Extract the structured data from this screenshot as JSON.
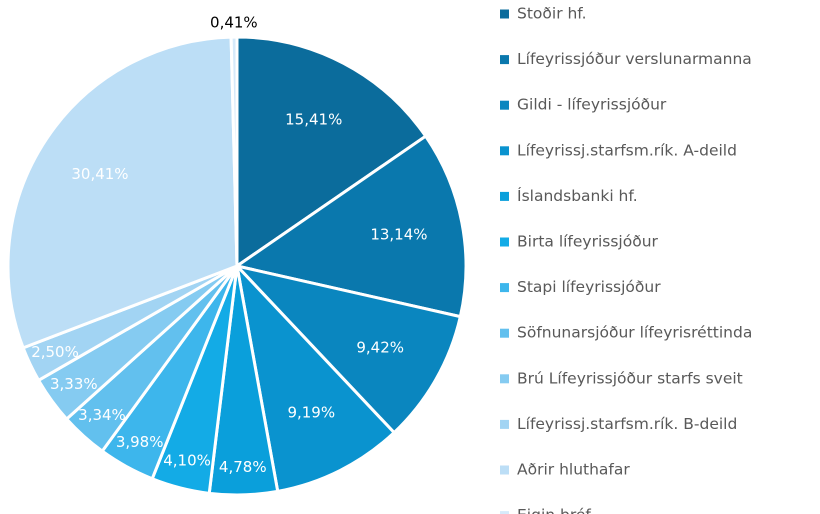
{
  "chart_data": {
    "type": "pie",
    "categories": [
      "Stoðir hf.",
      "Lífeyrissjóður verslunarmanna",
      "Gildi - lífeyrissjóður",
      "Lífeyrissj.starfsm.rík. A-deild",
      "Íslandsbanki hf.",
      "Birta lífeyrissjóður",
      "Stapi lífeyrissjóður",
      "Söfnunarsjóður lífeyrisréttinda",
      "Brú Lífeyrissjóður starfs sveit",
      "Lífeyrissj.starfsm.rík. B-deild",
      "Aðrir hluthafar",
      "Eigin bréf"
    ],
    "values": [
      15.41,
      13.14,
      9.42,
      9.19,
      4.78,
      4.1,
      3.98,
      3.34,
      3.33,
      2.5,
      30.41,
      0.41
    ],
    "value_labels": [
      "15,41%",
      "13,14%",
      "9,42%",
      "9,19%",
      "4,78%",
      "4,10%",
      "3,98%",
      "3,34%",
      "3,33%",
      "2,50%",
      "30,41%",
      "0,41%"
    ],
    "colors": [
      "#0b6c9c",
      "#0a78ad",
      "#0a86bf",
      "#0a93cf",
      "#0a9fdb",
      "#13abe6",
      "#3db6ec",
      "#62c0ee",
      "#85cbf1",
      "#a2d4f3",
      "#bcdef6",
      "#d6eafa"
    ],
    "legend": "right"
  }
}
